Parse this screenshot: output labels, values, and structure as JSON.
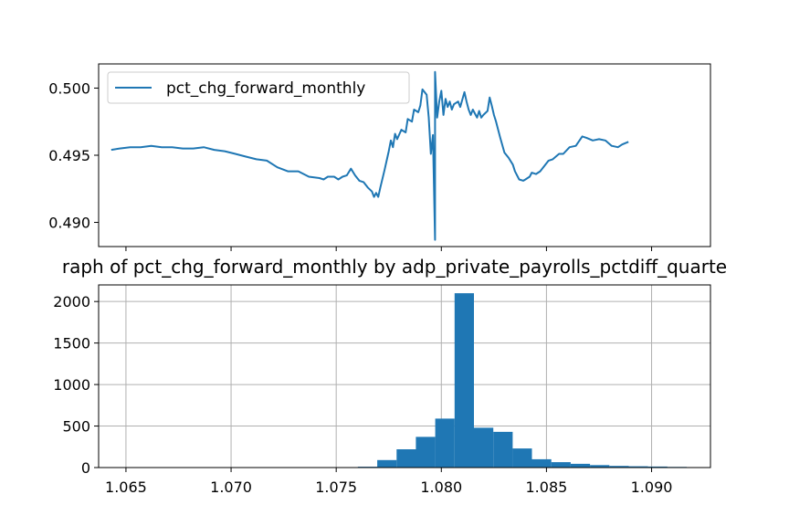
{
  "chart_data": [
    {
      "type": "line",
      "title": "",
      "xlabel": "",
      "ylabel": "",
      "xlim": [
        1.0637,
        1.0928
      ],
      "ylim": [
        0.4882,
        0.5018
      ],
      "yticks": [
        0.49,
        0.495,
        0.5
      ],
      "ytick_labels": [
        "0.490",
        "0.495",
        "0.500"
      ],
      "xticks": [
        1.065,
        1.07,
        1.075,
        1.08,
        1.085,
        1.09
      ],
      "xtick_labels_visible": false,
      "grid": false,
      "legend": {
        "position": "top-left"
      },
      "series": [
        {
          "name": "pct_chg_forward_monthly",
          "color": "#1f77b4",
          "points": [
            [
              1.0643,
              0.4954
            ],
            [
              1.0647,
              0.4955
            ],
            [
              1.0652,
              0.4956
            ],
            [
              1.0657,
              0.4956
            ],
            [
              1.0662,
              0.4957
            ],
            [
              1.0667,
              0.4956
            ],
            [
              1.0672,
              0.4956
            ],
            [
              1.0677,
              0.4955
            ],
            [
              1.0682,
              0.4955
            ],
            [
              1.0687,
              0.4956
            ],
            [
              1.0692,
              0.4954
            ],
            [
              1.0697,
              0.4953
            ],
            [
              1.0702,
              0.4951
            ],
            [
              1.0707,
              0.4949
            ],
            [
              1.0712,
              0.4947
            ],
            [
              1.0717,
              0.4946
            ],
            [
              1.0722,
              0.4941
            ],
            [
              1.0727,
              0.4938
            ],
            [
              1.0732,
              0.4938
            ],
            [
              1.0737,
              0.4934
            ],
            [
              1.0742,
              0.4933
            ],
            [
              1.0744,
              0.4932
            ],
            [
              1.0746,
              0.4934
            ],
            [
              1.0749,
              0.4934
            ],
            [
              1.0751,
              0.4932
            ],
            [
              1.0753,
              0.4934
            ],
            [
              1.0755,
              0.4935
            ],
            [
              1.0757,
              0.494
            ],
            [
              1.0759,
              0.4935
            ],
            [
              1.0761,
              0.4931
            ],
            [
              1.0763,
              0.493
            ],
            [
              1.0765,
              0.4926
            ],
            [
              1.0767,
              0.4923
            ],
            [
              1.0768,
              0.4919
            ],
            [
              1.0769,
              0.4922
            ],
            [
              1.077,
              0.4919
            ],
            [
              1.0771,
              0.4926
            ],
            [
              1.0773,
              0.4939
            ],
            [
              1.0775,
              0.4953
            ],
            [
              1.0776,
              0.4961
            ],
            [
              1.0777,
              0.4956
            ],
            [
              1.0778,
              0.4966
            ],
            [
              1.0779,
              0.4962
            ],
            [
              1.0781,
              0.4969
            ],
            [
              1.0783,
              0.4967
            ],
            [
              1.0784,
              0.4977
            ],
            [
              1.0786,
              0.4975
            ],
            [
              1.0787,
              0.4984
            ],
            [
              1.0789,
              0.4982
            ],
            [
              1.079,
              0.4987
            ],
            [
              1.0791,
              0.4999
            ],
            [
              1.0793,
              0.4995
            ],
            [
              1.0794,
              0.4978
            ],
            [
              1.0795,
              0.4951
            ],
            [
              1.0796,
              0.4965
            ],
            [
              1.0797,
              0.4887
            ],
            [
              1.0797,
              0.5012
            ],
            [
              1.0798,
              0.4978
            ],
            [
              1.0799,
              0.499
            ],
            [
              1.08,
              0.4998
            ],
            [
              1.0801,
              0.498
            ],
            [
              1.0802,
              0.4992
            ],
            [
              1.0803,
              0.4986
            ],
            [
              1.0804,
              0.499
            ],
            [
              1.0805,
              0.4984
            ],
            [
              1.0806,
              0.4988
            ],
            [
              1.0808,
              0.499
            ],
            [
              1.0809,
              0.4986
            ],
            [
              1.0811,
              0.4997
            ],
            [
              1.0812,
              0.499
            ],
            [
              1.0813,
              0.4984
            ],
            [
              1.0814,
              0.498
            ],
            [
              1.0815,
              0.4984
            ],
            [
              1.0817,
              0.4978
            ],
            [
              1.0818,
              0.4983
            ],
            [
              1.0819,
              0.4978
            ],
            [
              1.082,
              0.498
            ],
            [
              1.0822,
              0.4983
            ],
            [
              1.0823,
              0.4993
            ],
            [
              1.0824,
              0.4987
            ],
            [
              1.0825,
              0.498
            ],
            [
              1.0826,
              0.4975
            ],
            [
              1.0827,
              0.4969
            ],
            [
              1.0828,
              0.4963
            ],
            [
              1.083,
              0.4952
            ],
            [
              1.0832,
              0.4948
            ],
            [
              1.0834,
              0.4943
            ],
            [
              1.0835,
              0.4938
            ],
            [
              1.0837,
              0.4932
            ],
            [
              1.0839,
              0.4931
            ],
            [
              1.084,
              0.4932
            ],
            [
              1.0842,
              0.4934
            ],
            [
              1.0843,
              0.4937
            ],
            [
              1.0845,
              0.4936
            ],
            [
              1.0847,
              0.4938
            ],
            [
              1.0849,
              0.4942
            ],
            [
              1.0851,
              0.4946
            ],
            [
              1.0853,
              0.4947
            ],
            [
              1.0856,
              0.4951
            ],
            [
              1.0858,
              0.4951
            ],
            [
              1.0861,
              0.4956
            ],
            [
              1.0864,
              0.4957
            ],
            [
              1.0867,
              0.4964
            ],
            [
              1.0869,
              0.4963
            ],
            [
              1.0872,
              0.4961
            ],
            [
              1.0875,
              0.4962
            ],
            [
              1.0878,
              0.4961
            ],
            [
              1.0881,
              0.4957
            ],
            [
              1.0884,
              0.4956
            ],
            [
              1.0886,
              0.4958
            ],
            [
              1.0889,
              0.496
            ]
          ]
        }
      ]
    },
    {
      "type": "bar",
      "title": "raph of pct_chg_forward_monthly by adp_private_payrolls_pctdiff_quarte",
      "xlabel": "",
      "ylabel": "",
      "xlim": [
        1.0637,
        1.0928
      ],
      "ylim": [
        0,
        2200
      ],
      "xticks": [
        1.065,
        1.07,
        1.075,
        1.08,
        1.085,
        1.09
      ],
      "xtick_labels": [
        "1.065",
        "1.070",
        "1.075",
        "1.080",
        "1.085",
        "1.090"
      ],
      "yticks": [
        0,
        500,
        1000,
        1500,
        2000
      ],
      "ytick_labels": [
        "0",
        "500",
        "1000",
        "1500",
        "2000"
      ],
      "grid": true,
      "color": "#1f77b4",
      "bin_width": 0.00092,
      "bins": [
        [
          1.07603,
          10
        ],
        [
          1.07695,
          90
        ],
        [
          1.07787,
          220
        ],
        [
          1.07879,
          370
        ],
        [
          1.07971,
          590
        ],
        [
          1.08063,
          2100
        ],
        [
          1.08155,
          480
        ],
        [
          1.08247,
          430
        ],
        [
          1.08339,
          230
        ],
        [
          1.08431,
          100
        ],
        [
          1.08523,
          65
        ],
        [
          1.08615,
          45
        ],
        [
          1.08707,
          30
        ],
        [
          1.08799,
          20
        ],
        [
          1.08891,
          15
        ],
        [
          1.08983,
          12
        ],
        [
          1.09075,
          8
        ]
      ]
    }
  ]
}
